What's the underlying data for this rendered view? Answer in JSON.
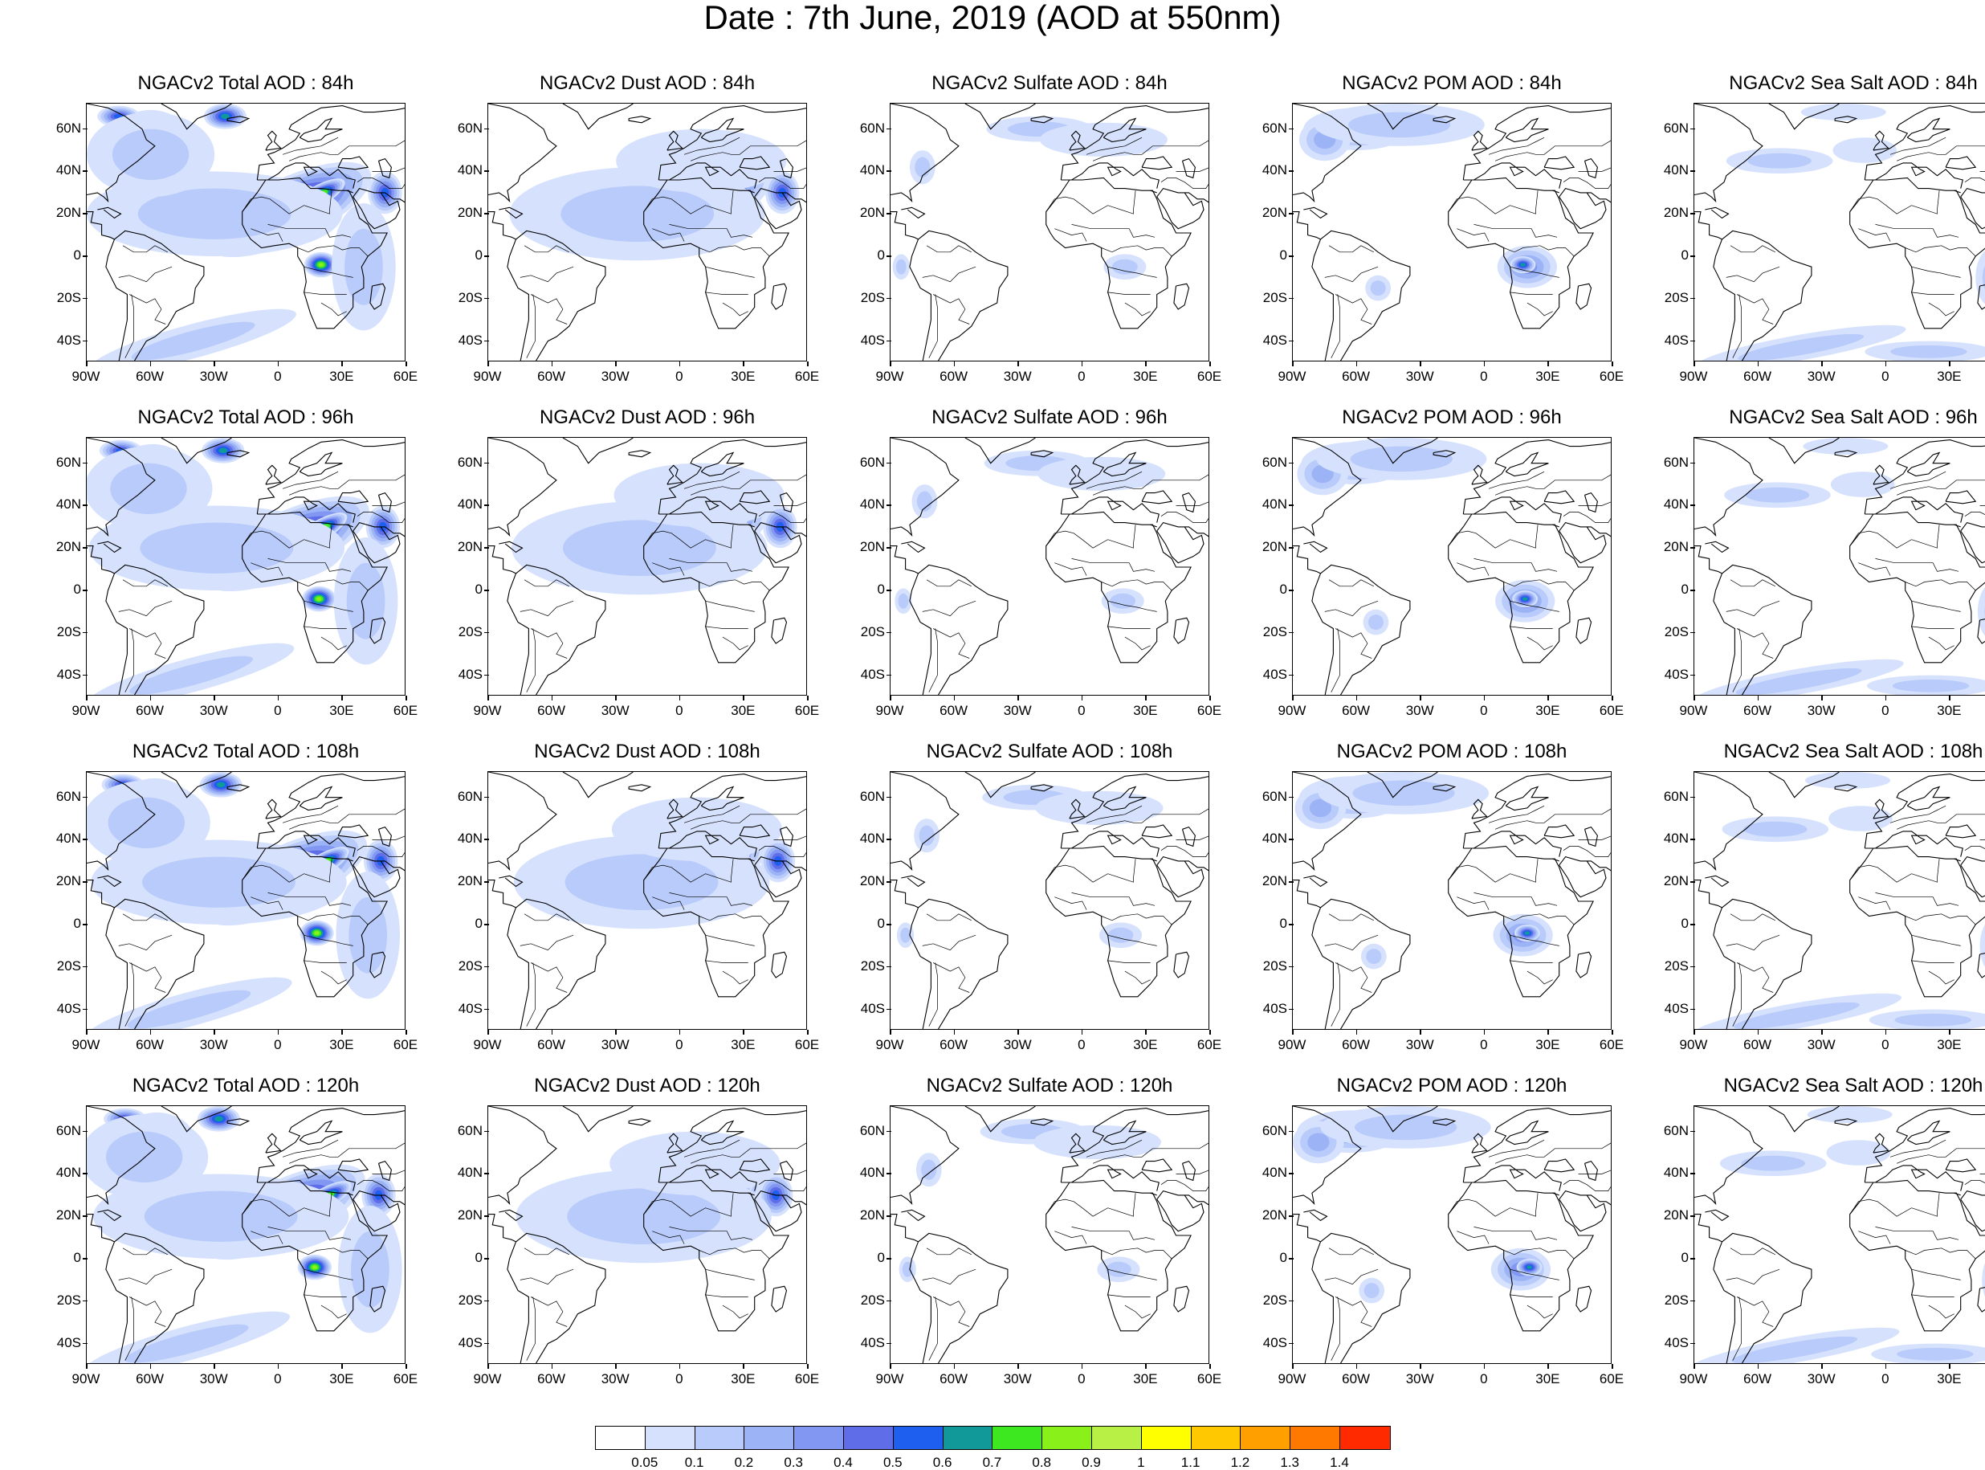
{
  "title": "Date : 7th June, 2019 (AOD at 550nm)",
  "lat_labels": [
    "60N",
    "40N",
    "20N",
    "0",
    "20S",
    "40S"
  ],
  "lat_values": [
    60,
    40,
    20,
    0,
    -20,
    -40
  ],
  "lon_labels": [
    "90W",
    "60W",
    "30W",
    "0",
    "30E",
    "60E"
  ],
  "lon_values": [
    -90,
    -60,
    -30,
    0,
    30,
    60
  ],
  "lat_range": [
    -50,
    72
  ],
  "lon_range": [
    -90,
    60
  ],
  "columns": [
    {
      "species": "total",
      "color_hint": "#8ea8f0"
    },
    {
      "species": "dust",
      "color_hint": "#9cb5f5"
    },
    {
      "species": "sulfate",
      "color_hint": "#c9d8fc"
    },
    {
      "species": "pom",
      "color_hint": "#a7bdf6"
    },
    {
      "species": "seasalt",
      "color_hint": "#c6d5fb"
    }
  ],
  "panels": [
    [
      {
        "title": "NGACv2 Total AOD : 84h"
      },
      {
        "title": "NGACv2 Dust AOD : 84h"
      },
      {
        "title": "NGACv2 Sulfate AOD : 84h"
      },
      {
        "title": "NGACv2 POM AOD : 84h"
      },
      {
        "title": "NGACv2 Sea Salt AOD : 84h"
      }
    ],
    [
      {
        "title": "NGACv2 Total AOD : 96h"
      },
      {
        "title": "NGACv2 Dust AOD : 96h"
      },
      {
        "title": "NGACv2 Sulfate AOD : 96h"
      },
      {
        "title": "NGACv2 POM AOD : 96h"
      },
      {
        "title": "NGACv2 Sea Salt AOD : 96h"
      }
    ],
    [
      {
        "title": "NGACv2 Total AOD : 108h"
      },
      {
        "title": "NGACv2 Dust AOD : 108h"
      },
      {
        "title": "NGACv2 Sulfate AOD : 108h"
      },
      {
        "title": "NGACv2 POM AOD : 108h"
      },
      {
        "title": "NGACv2 Sea Salt AOD : 108h"
      }
    ],
    [
      {
        "title": "NGACv2 Total AOD : 120h"
      },
      {
        "title": "NGACv2 Dust AOD : 120h"
      },
      {
        "title": "NGACv2 Sulfate AOD : 120h"
      },
      {
        "title": "NGACv2 POM AOD : 120h"
      },
      {
        "title": "NGACv2 Sea Salt  AOD : 120h"
      }
    ]
  ],
  "colorbar": {
    "colors": [
      "#ffffff",
      "#d6e2fd",
      "#b9cbfa",
      "#9cb4f6",
      "#8197f1",
      "#5f6ee8",
      "#1f5ff0",
      "#119999",
      "#3ee820",
      "#8af01a",
      "#b8f046",
      "#ffff00",
      "#ffc800",
      "#ffa000",
      "#ff7800",
      "#ff2a00"
    ],
    "labels": [
      "0.05",
      "0.1",
      "0.2",
      "0.3",
      "0.4",
      "0.5",
      "0.6",
      "0.7",
      "0.8",
      "0.9",
      "1",
      "1.1",
      "1.2",
      "1.3",
      "1.4"
    ]
  }
}
